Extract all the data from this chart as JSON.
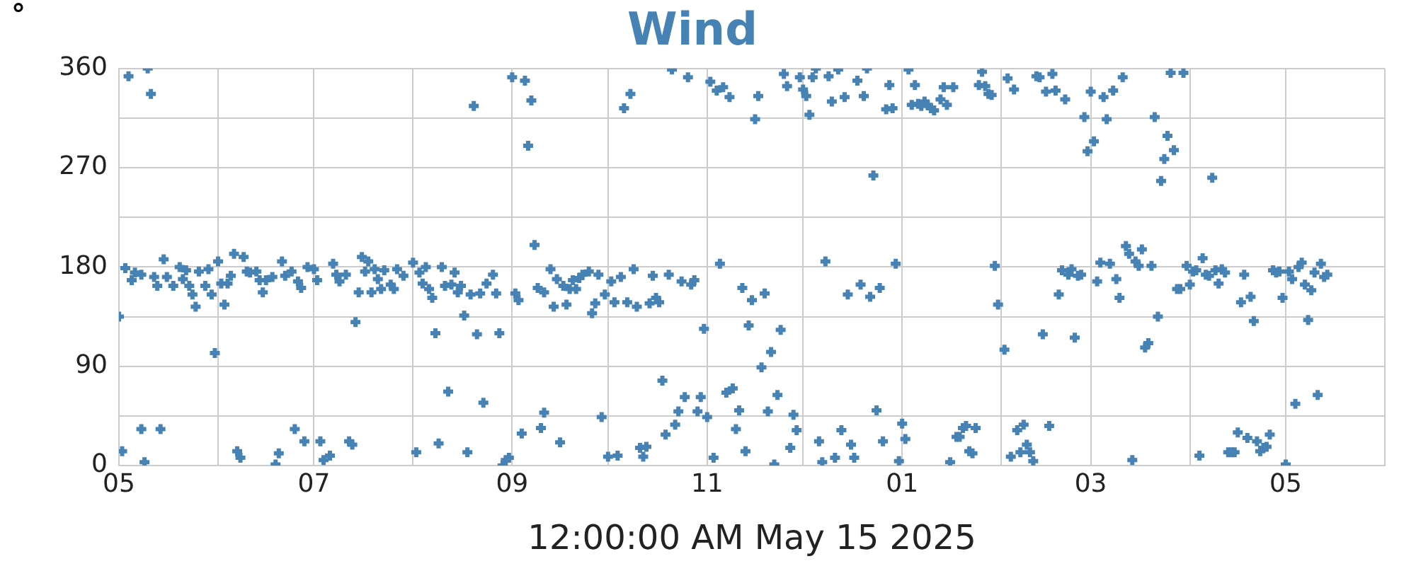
{
  "chart_data": {
    "type": "scatter",
    "title": "Wind",
    "ylabel": "°",
    "xlabel": "12:00:00 AM May 15 2025",
    "xlim": [
      "2024-05-01",
      "2025-06-01"
    ],
    "xticks": [
      {
        "value": "2024-05-01",
        "label": "05"
      },
      {
        "value": "2024-06-01",
        "label": null
      },
      {
        "value": "2024-07-01",
        "label": "07"
      },
      {
        "value": "2024-08-01",
        "label": null
      },
      {
        "value": "2024-09-01",
        "label": "09"
      },
      {
        "value": "2024-10-01",
        "label": null
      },
      {
        "value": "2024-11-01",
        "label": "11"
      },
      {
        "value": "2024-12-01",
        "label": null
      },
      {
        "value": "2025-01-01",
        "label": "01"
      },
      {
        "value": "2025-02-01",
        "label": null
      },
      {
        "value": "2025-03-01",
        "label": "03"
      },
      {
        "value": "2025-04-01",
        "label": null
      },
      {
        "value": "2025-05-01",
        "label": "05"
      },
      {
        "value": "2025-06-01",
        "label": null
      }
    ],
    "ylim": [
      0,
      360
    ],
    "yticks": [
      0,
      {
        "value": 45,
        "label": null
      },
      90,
      {
        "value": 135,
        "label": null
      },
      180,
      {
        "value": 225,
        "label": null
      },
      270,
      {
        "value": 315,
        "label": null
      },
      360
    ],
    "grid": true,
    "legend": false,
    "marker": "cross",
    "series": [
      {
        "color": "#4682b4",
        "x": [
          "2024-05-01",
          "2024-05-02",
          "2024-05-03",
          "2024-05-04",
          "2024-05-05",
          "2024-05-06",
          "2024-05-08",
          "2024-05-08",
          "2024-05-09",
          "2024-05-10",
          "2024-05-11",
          "2024-05-12",
          "2024-05-13",
          "2024-05-14",
          "2024-05-15",
          "2024-05-16",
          "2024-05-18",
          "2024-05-20",
          "2024-05-21",
          "2024-05-22",
          "2024-05-23",
          "2024-05-24",
          "2024-05-25",
          "2024-05-26",
          "2024-05-28",
          "2024-05-29",
          "2024-05-30",
          "2024-05-31",
          "2024-06-01",
          "2024-06-02",
          "2024-06-03",
          "2024-06-04",
          "2024-06-05",
          "2024-06-06",
          "2024-06-07",
          "2024-06-08",
          "2024-06-09",
          "2024-06-10",
          "2024-06-11",
          "2024-06-13",
          "2024-06-14",
          "2024-06-15",
          "2024-06-16",
          "2024-06-18",
          "2024-06-19",
          "2024-06-20",
          "2024-06-21",
          "2024-06-22",
          "2024-06-24",
          "2024-06-25",
          "2024-06-26",
          "2024-06-27",
          "2024-06-28",
          "2024-06-29",
          "2024-07-01",
          "2024-07-02",
          "2024-07-03",
          "2024-07-04",
          "2024-07-06",
          "2024-07-07",
          "2024-07-08",
          "2024-07-09",
          "2024-07-11",
          "2024-07-12",
          "2024-07-13",
          "2024-07-14",
          "2024-07-15",
          "2024-07-16",
          "2024-07-17",
          "2024-07-18",
          "2024-07-19",
          "2024-07-20",
          "2024-07-21",
          "2024-07-22",
          "2024-07-23",
          "2024-07-25",
          "2024-07-26",
          "2024-07-27",
          "2024-07-29",
          "2024-08-01",
          "2024-08-02",
          "2024-08-03",
          "2024-08-04",
          "2024-08-05",
          "2024-08-06",
          "2024-08-07",
          "2024-08-08",
          "2024-08-09",
          "2024-08-10",
          "2024-08-11",
          "2024-08-12",
          "2024-08-13",
          "2024-08-14",
          "2024-08-15",
          "2024-08-16",
          "2024-08-17",
          "2024-08-18",
          "2024-08-19",
          "2024-08-20",
          "2024-08-21",
          "2024-08-22",
          "2024-08-23",
          "2024-08-24",
          "2024-08-26",
          "2024-08-27",
          "2024-08-28",
          "2024-08-29",
          "2024-08-30",
          "2024-08-31",
          "2024-09-01",
          "2024-09-02",
          "2024-09-03",
          "2024-09-04",
          "2024-09-05",
          "2024-09-06",
          "2024-09-07",
          "2024-09-08",
          "2024-09-09",
          "2024-09-10",
          "2024-09-11",
          "2024-09-11",
          "2024-09-13",
          "2024-09-14",
          "2024-09-15",
          "2024-09-16",
          "2024-09-17",
          "2024-09-18",
          "2024-09-19",
          "2024-09-20",
          "2024-09-21",
          "2024-09-22",
          "2024-09-23",
          "2024-09-25",
          "2024-09-26",
          "2024-09-27",
          "2024-09-28",
          "2024-09-29",
          "2024-09-30",
          "2024-10-01",
          "2024-10-02",
          "2024-10-03",
          "2024-10-04",
          "2024-10-05",
          "2024-10-06",
          "2024-10-07",
          "2024-10-08",
          "2024-10-09",
          "2024-10-10",
          "2024-10-11",
          "2024-10-12",
          "2024-10-13",
          "2024-10-14",
          "2024-10-15",
          "2024-10-16",
          "2024-10-17",
          "2024-10-18",
          "2024-10-19",
          "2024-10-20",
          "2024-10-21",
          "2024-10-22",
          "2024-10-23",
          "2024-10-24",
          "2024-10-25",
          "2024-10-26",
          "2024-10-27",
          "2024-10-28",
          "2024-10-29",
          "2024-10-30",
          "2024-10-31",
          "2024-11-01",
          "2024-11-02",
          "2024-11-03",
          "2024-11-04",
          "2024-11-05",
          "2024-11-06",
          "2024-11-07",
          "2024-11-08",
          "2024-11-09",
          "2024-11-10",
          "2024-11-11",
          "2024-11-12",
          "2024-11-13",
          "2024-11-14",
          "2024-11-15",
          "2024-11-16",
          "2024-11-17",
          "2024-11-18",
          "2024-11-19",
          "2024-11-20",
          "2024-11-21",
          "2024-11-22",
          "2024-11-23",
          "2024-11-24",
          "2024-11-25",
          "2024-11-26",
          "2024-11-27",
          "2024-11-28",
          "2024-11-29",
          "2024-11-30",
          "2024-12-01",
          "2024-12-02",
          "2024-12-03",
          "2024-12-04",
          "2024-12-05",
          "2024-12-06",
          "2024-12-07",
          "2024-12-08",
          "2024-12-09",
          "2024-12-10",
          "2024-12-11",
          "2024-12-12",
          "2024-12-13",
          "2024-12-14",
          "2024-12-15",
          "2024-12-16",
          "2024-12-17",
          "2024-12-18",
          "2024-12-19",
          "2024-12-20",
          "2024-12-21",
          "2024-12-22",
          "2024-12-23",
          "2024-12-24",
          "2024-12-25",
          "2024-12-26",
          "2024-12-27",
          "2024-12-28",
          "2024-12-29",
          "2024-12-30",
          "2024-12-31",
          "2025-01-01",
          "2025-01-02",
          "2025-01-03",
          "2025-01-04",
          "2025-01-05",
          "2025-01-06",
          "2025-01-07",
          "2025-01-08",
          "2025-01-09",
          "2025-01-10",
          "2025-01-11",
          "2025-01-13",
          "2025-01-14",
          "2025-01-15",
          "2025-01-16",
          "2025-01-17",
          "2025-01-18",
          "2025-01-19",
          "2025-01-20",
          "2025-01-21",
          "2025-01-22",
          "2025-01-23",
          "2025-01-24",
          "2025-01-25",
          "2025-01-26",
          "2025-01-27",
          "2025-01-28",
          "2025-01-29",
          "2025-01-30",
          "2025-01-31",
          "2025-02-02",
          "2025-02-03",
          "2025-02-04",
          "2025-02-05",
          "2025-02-06",
          "2025-02-07",
          "2025-02-08",
          "2025-02-09",
          "2025-02-10",
          "2025-02-11",
          "2025-02-12",
          "2025-02-13",
          "2025-02-14",
          "2025-02-15",
          "2025-02-16",
          "2025-02-17",
          "2025-02-18",
          "2025-02-19",
          "2025-02-20",
          "2025-02-21",
          "2025-02-22",
          "2025-02-23",
          "2025-02-24",
          "2025-02-25",
          "2025-02-26",
          "2025-02-27",
          "2025-02-28",
          "2025-03-01",
          "2025-03-02",
          "2025-03-03",
          "2025-03-04",
          "2025-03-05",
          "2025-03-06",
          "2025-03-07",
          "2025-03-08",
          "2025-03-09",
          "2025-03-10",
          "2025-03-11",
          "2025-03-12",
          "2025-03-13",
          "2025-03-14",
          "2025-03-15",
          "2025-03-16",
          "2025-03-17",
          "2025-03-18",
          "2025-03-19",
          "2025-03-20",
          "2025-03-21",
          "2025-03-22",
          "2025-03-23",
          "2025-03-24",
          "2025-03-25",
          "2025-03-26",
          "2025-03-27",
          "2025-03-28",
          "2025-03-29",
          "2025-03-30",
          "2025-03-31",
          "2025-04-01",
          "2025-04-02",
          "2025-04-03",
          "2025-04-04",
          "2025-04-05",
          "2025-04-06",
          "2025-04-07",
          "2025-04-08",
          "2025-04-09",
          "2025-04-10",
          "2025-04-11",
          "2025-04-12",
          "2025-04-13",
          "2025-04-14",
          "2025-04-15",
          "2025-04-16",
          "2025-04-17",
          "2025-04-18",
          "2025-04-19",
          "2025-04-20",
          "2025-04-21",
          "2025-04-22",
          "2025-04-23",
          "2025-04-24",
          "2025-04-25",
          "2025-04-26",
          "2025-04-27",
          "2025-04-28",
          "2025-04-29",
          "2025-04-30",
          "2025-05-01",
          "2025-05-02",
          "2025-05-03",
          "2025-05-04",
          "2025-05-05",
          "2025-05-06",
          "2025-05-07",
          "2025-05-08",
          "2025-05-09",
          "2025-05-10",
          "2025-05-11",
          "2025-05-12",
          "2025-05-13",
          "2025-05-14"
        ],
        "values": [
          135,
          13,
          179,
          353,
          168,
          175,
          173,
          33,
          3,
          360,
          337,
          171,
          163,
          33,
          187,
          171,
          163,
          180,
          169,
          177,
          163,
          155,
          144,
          176,
          163,
          178,
          155,
          102,
          185,
          165,
          146,
          165,
          172,
          192,
          13,
          7,
          189,
          176,
          175,
          176,
          168,
          157,
          168,
          171,
          1,
          11,
          185,
          172,
          176,
          33,
          167,
          161,
          22,
          180,
          178,
          168,
          22,
          5,
          9,
          183,
          173,
          167,
          173,
          22,
          19,
          130,
          157,
          189,
          176,
          185,
          157,
          178,
          169,
          160,
          177,
          164,
          160,
          178,
          172,
          184,
          12,
          175,
          165,
          180,
          160,
          152,
          120,
          20,
          180,
          163,
          67,
          164,
          175,
          157,
          163,
          136,
          12,
          155,
          326,
          119,
          156,
          57,
          165,
          173,
          156,
          120,
          0,
          5,
          7,
          352,
          156,
          150,
          29,
          349,
          290,
          331,
          200,
          161,
          34,
          48,
          157,
          178,
          144,
          169,
          21,
          163,
          146,
          160,
          168,
          160,
          170,
          173,
          176,
          138,
          147,
          173,
          44,
          155,
          8,
          167,
          148,
          9,
          171,
          324,
          148,
          337,
          178,
          144,
          16,
          8,
          17,
          147,
          172,
          152,
          148,
          77,
          28,
          173,
          359,
          37,
          49,
          167,
          62,
          352,
          164,
          168,
          49,
          62,
          124,
          44,
          348,
          7,
          340,
          183,
          343,
          66,
          334,
          70,
          33,
          50,
          161,
          13,
          127,
          150,
          314,
          335,
          89,
          156,
          49,
          103,
          1,
          64,
          123,
          355,
          344,
          16,
          46,
          32,
          352,
          341,
          335,
          318,
          352,
          360,
          22,
          3,
          185,
          353,
          330,
          7,
          359,
          32,
          334,
          155,
          19,
          7,
          349,
          164,
          335,
          360,
          153,
          263,
          50,
          161,
          22,
          323,
          345,
          324,
          183,
          4,
          38,
          24,
          359,
          327,
          345,
          328,
          326,
          330,
          327,
          324,
          322,
          332,
          343,
          327,
          3,
          343,
          26,
          26,
          34,
          36,
          13,
          11,
          34,
          345,
          357,
          344,
          337,
          336,
          181,
          146,
          105,
          351,
          8,
          341,
          32,
          12,
          37,
          19,
          12,
          4,
          353,
          352,
          119,
          339,
          36,
          355,
          340,
          155,
          177,
          332,
          173,
          178,
          116,
          172,
          173,
          316,
          285,
          339,
          294,
          167,
          184,
          334,
          314,
          183,
          340,
          169,
          152,
          352,
          199,
          192,
          5,
          185,
          181,
          196,
          107,
          111,
          181,
          316,
          135,
          258,
          278,
          299,
          356,
          286,
          160,
          160,
          356,
          181,
          164,
          176,
          177,
          9,
          188,
          173,
          172,
          261,
          177,
          165,
          178,
          175,
          12,
          12,
          12,
          30,
          148,
          173,
          25,
          153,
          131,
          22,
          13,
          16,
          17,
          28,
          177,
          175,
          176,
          152,
          1,
          176,
          169,
          56,
          180,
          184,
          164,
          132,
          159,
          175,
          64,
          183,
          171,
          173
        ]
      }
    ]
  }
}
